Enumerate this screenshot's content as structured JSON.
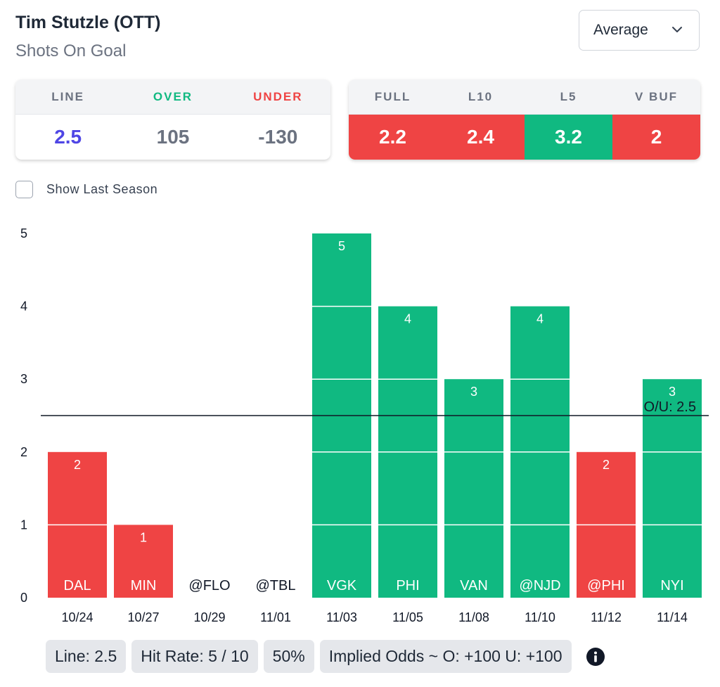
{
  "header": {
    "player_name": "Tim Stutzle (OTT)",
    "stat_name": "Shots On Goal",
    "dropdown_value": "Average"
  },
  "odds_card": {
    "columns": [
      {
        "label": "LINE",
        "value": "2.5"
      },
      {
        "label": "OVER",
        "value": "105"
      },
      {
        "label": "UNDER",
        "value": "-130"
      }
    ]
  },
  "averages_card": {
    "columns": [
      {
        "label": "FULL",
        "value": "2.2",
        "status": "under"
      },
      {
        "label": "L10",
        "value": "2.4",
        "status": "under"
      },
      {
        "label": "L5",
        "value": "3.2",
        "status": "over"
      },
      {
        "label": "V BUF",
        "value": "2",
        "status": "under"
      }
    ]
  },
  "toggle": {
    "label": "Show Last Season",
    "checked": false
  },
  "colors": {
    "over": "#10b981",
    "under": "#ef4444",
    "line": "#4f46e5"
  },
  "chart_data": {
    "type": "bar",
    "categories": [
      "10/24",
      "10/27",
      "10/29",
      "11/01",
      "11/03",
      "11/05",
      "11/08",
      "11/10",
      "11/12",
      "11/14"
    ],
    "opponents": [
      "DAL",
      "MIN",
      "@FLO",
      "@TBL",
      "VGK",
      "PHI",
      "VAN",
      "@NJD",
      "@PHI",
      "NYI"
    ],
    "values": [
      2,
      1,
      0,
      0,
      5,
      4,
      3,
      4,
      2,
      3
    ],
    "value_labels": [
      "2",
      "1",
      "",
      "",
      "5",
      "4",
      "3",
      "4",
      "2",
      "3"
    ],
    "yticks": [
      "0",
      "1",
      "2",
      "3",
      "4",
      "5"
    ],
    "ylim": [
      0,
      5
    ],
    "reference_line": {
      "value": 2.5,
      "label": "O/U: 2.5"
    },
    "title": "",
    "xlabel": "",
    "ylabel": ""
  },
  "footer": {
    "line": "Line: 2.5",
    "hit_rate": "Hit Rate: 5 / 10",
    "percent": "50%",
    "implied_odds": "Implied Odds ~ O: +100 U: +100"
  }
}
